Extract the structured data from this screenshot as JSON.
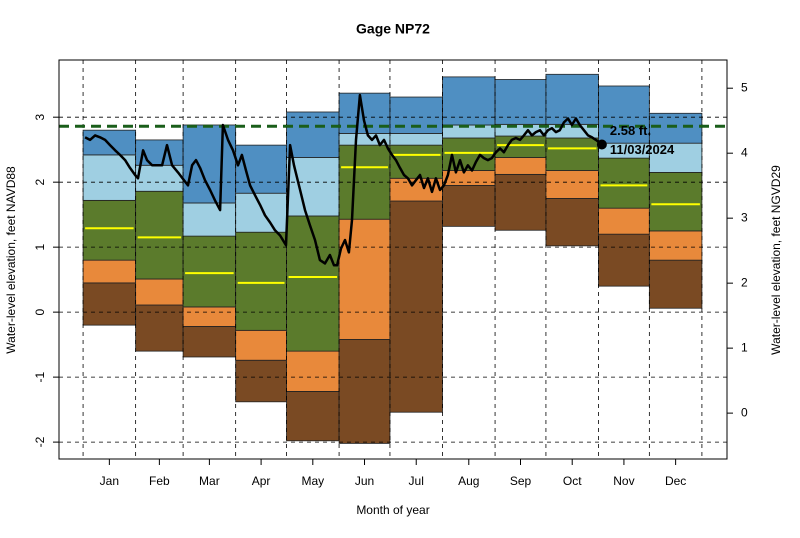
{
  "chart_data": {
    "type": "band-line",
    "title": "Gage NP72",
    "xlabel": "Month of year",
    "ylabel": "Water-level elevation, feet NAVD88",
    "y2label": "Water-level elevation, feet NGVD29",
    "xlim": [
      -14.2,
      379.8
    ],
    "ylim": [
      -2.26,
      3.88
    ],
    "y2lim": [
      -0.706,
      5.434
    ],
    "yticks": [
      -2,
      -1,
      0,
      1,
      2,
      3
    ],
    "y2ticks": [
      0,
      1,
      2,
      3,
      4,
      5
    ],
    "xticks": [
      {
        "value": 15.5,
        "label": "Jan"
      },
      {
        "value": 45,
        "label": "Feb"
      },
      {
        "value": 74.5,
        "label": "Mar"
      },
      {
        "value": 105,
        "label": "Apr"
      },
      {
        "value": 135.5,
        "label": "May"
      },
      {
        "value": 166,
        "label": "Jun"
      },
      {
        "value": 196.5,
        "label": "Jul"
      },
      {
        "value": 227.5,
        "label": "Aug"
      },
      {
        "value": 258,
        "label": "Sep"
      },
      {
        "value": 288.5,
        "label": "Oct"
      },
      {
        "value": 319,
        "label": "Nov"
      },
      {
        "value": 349.5,
        "label": "Dec"
      }
    ],
    "xgrid": [
      0,
      31,
      59,
      90,
      120,
      151,
      181,
      212,
      243,
      273,
      304,
      334,
      365
    ],
    "grid": true,
    "bands_base": [
      -0.2,
      -0.6,
      -0.69,
      -1.38,
      -1.98,
      -2.02,
      -1.54,
      1.32,
      1.26,
      1.02,
      0.4,
      0.06
    ],
    "bands": [
      {
        "color": "#7a4a23",
        "values": [
          0.45,
          0.11,
          -0.22,
          -0.74,
          -1.22,
          -0.42,
          1.71,
          1.95,
          2.12,
          1.75,
          1.2,
          0.8
        ]
      },
      {
        "color": "#e8893b",
        "values": [
          0.8,
          0.51,
          0.08,
          -0.28,
          -0.6,
          1.43,
          2.06,
          2.18,
          2.38,
          2.18,
          1.6,
          1.25
        ]
      },
      {
        "color": "#5b7b2c",
        "values": [
          1.72,
          1.86,
          1.17,
          1.23,
          1.48,
          2.57,
          2.57,
          2.68,
          2.71,
          2.68,
          2.37,
          2.15
        ]
      },
      {
        "color": "#9fcfe2",
        "values": [
          2.42,
          2.26,
          1.68,
          1.83,
          2.38,
          2.75,
          2.75,
          2.88,
          2.89,
          2.89,
          2.6,
          2.6
        ]
      },
      {
        "color": "#4f8fc2",
        "values": [
          2.8,
          2.65,
          2.88,
          2.57,
          3.08,
          3.37,
          3.31,
          3.62,
          3.58,
          3.66,
          3.48,
          3.06
        ]
      }
    ],
    "median": {
      "color": "#ffff00",
      "values": [
        1.29,
        1.15,
        0.6,
        0.45,
        0.54,
        2.23,
        2.42,
        2.45,
        2.57,
        2.52,
        1.95,
        1.66
      ]
    },
    "reference_line": {
      "value": 2.86,
      "color": "#1a5e1a"
    },
    "trace": {
      "color": "#000000",
      "x": [
        1.2,
        4.1,
        7.1,
        10.0,
        13.0,
        15.9,
        18.9,
        21.8,
        24.8,
        27.7,
        30.7,
        32.4,
        35.4,
        37.7,
        40.7,
        43.6,
        46.6,
        49.5,
        52.5,
        56.0,
        59.5,
        61.9,
        64.3,
        66.6,
        69.0,
        71.9,
        74.9,
        77.8,
        80.8,
        82.5,
        85.5,
        88.4,
        91.4,
        93.7,
        96.1,
        98.5,
        101.4,
        104.4,
        107.3,
        110.3,
        113.2,
        116.2,
        119.7,
        122.1,
        124.4,
        128.0,
        130.9,
        133.8,
        136.8,
        139.7,
        142.7,
        145.6,
        148.0,
        149.8,
        152.1,
        154.5,
        156.8,
        158.6,
        161.0,
        163.3,
        165.7,
        168.0,
        170.4,
        172.8,
        175.1,
        177.5,
        179.8,
        182.2,
        184.5,
        186.9,
        189.3,
        191.6,
        194.0,
        196.3,
        198.7,
        201.1,
        203.4,
        205.8,
        208.1,
        210.5,
        212.8,
        215.2,
        217.6,
        219.9,
        222.3,
        224.6,
        227.0,
        229.4,
        231.7,
        234.1,
        236.4,
        238.8,
        241.1,
        243.5,
        245.9,
        248.2,
        250.6,
        252.9,
        255.3,
        257.7,
        260.0,
        262.4,
        264.7,
        267.1,
        269.5,
        271.8,
        274.2,
        276.5,
        278.9,
        281.2,
        283.6,
        286.0,
        288.3,
        290.7,
        293.0,
        295.4,
        297.8,
        300.1,
        302.5,
        306.0
      ],
      "values": [
        2.69,
        2.65,
        2.72,
        2.69,
        2.65,
        2.57,
        2.49,
        2.42,
        2.34,
        2.22,
        2.11,
        2.06,
        2.49,
        2.34,
        2.26,
        2.26,
        2.26,
        2.57,
        2.26,
        2.15,
        2.03,
        1.95,
        2.26,
        2.34,
        2.22,
        2.03,
        1.88,
        1.72,
        1.57,
        2.88,
        2.65,
        2.49,
        2.26,
        2.42,
        2.18,
        1.95,
        1.8,
        1.65,
        1.49,
        1.38,
        1.26,
        1.18,
        1.03,
        2.57,
        2.26,
        1.88,
        1.57,
        1.34,
        1.11,
        0.8,
        0.75,
        0.88,
        0.72,
        0.72,
        0.98,
        1.11,
        0.92,
        1.42,
        2.65,
        3.34,
        2.95,
        2.72,
        2.65,
        2.72,
        2.57,
        2.65,
        2.52,
        2.42,
        2.34,
        2.22,
        2.11,
        2.06,
        1.95,
        2.03,
        2.11,
        1.91,
        2.06,
        1.85,
        2.06,
        1.88,
        1.95,
        2.11,
        2.42,
        2.15,
        2.34,
        2.15,
        2.26,
        2.18,
        2.31,
        2.42,
        2.37,
        2.34,
        2.37,
        2.46,
        2.52,
        2.46,
        2.57,
        2.65,
        2.68,
        2.65,
        2.72,
        2.8,
        2.72,
        2.77,
        2.8,
        2.72,
        2.8,
        2.83,
        2.77,
        2.8,
        2.92,
        2.98,
        2.88,
        2.98,
        2.88,
        2.8,
        2.72,
        2.69,
        2.65,
        2.58
      ]
    },
    "annotation": {
      "x": 306.0,
      "y": 2.58,
      "lines": [
        "2.58 ft.",
        "11/03/2024"
      ]
    }
  }
}
